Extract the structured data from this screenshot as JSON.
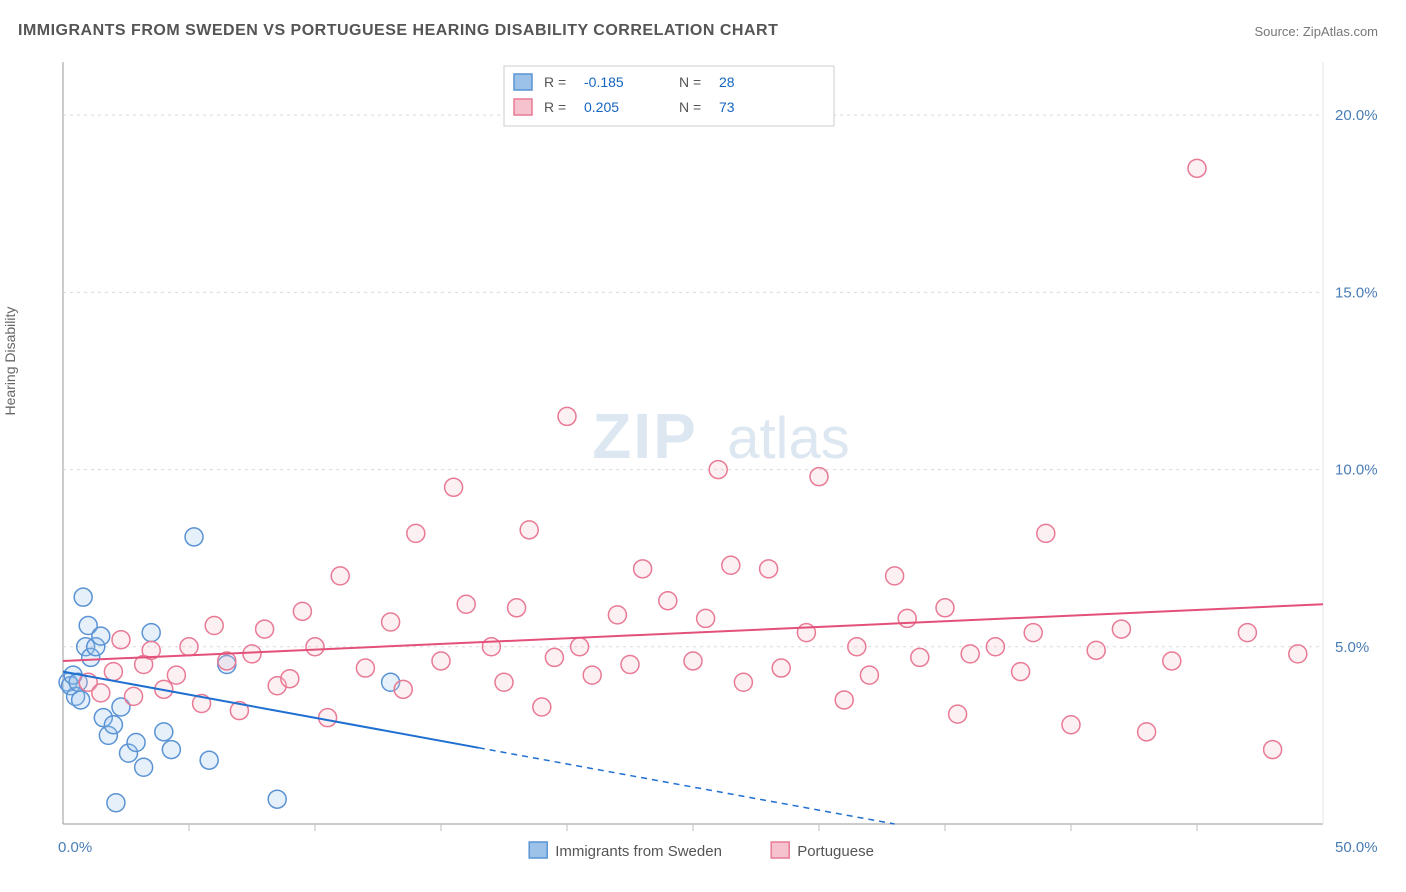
{
  "title": "IMMIGRANTS FROM SWEDEN VS PORTUGUESE HEARING DISABILITY CORRELATION CHART",
  "source": "Source: ZipAtlas.com",
  "ylabel": "Hearing Disability",
  "watermark": {
    "heavy": "ZIP",
    "light": "atlas"
  },
  "chart": {
    "type": "scatter",
    "background_color": "#ffffff",
    "grid_color": "#d9d9d9",
    "axis_color": "#999999",
    "tick_color": "#bfbfbf",
    "xlim": [
      0,
      50
    ],
    "ylim": [
      0,
      21.5
    ],
    "y_ticks": [
      {
        "v": 5,
        "label": "5.0%"
      },
      {
        "v": 10,
        "label": "10.0%"
      },
      {
        "v": 15,
        "label": "15.0%"
      },
      {
        "v": 20,
        "label": "20.0%"
      }
    ],
    "x_axis_labels": {
      "left": "0.0%",
      "right": "50.0%"
    },
    "x_minor_step": 5,
    "marker_radius": 9,
    "marker_stroke_width": 1.5,
    "marker_fill_opacity": 0.25,
    "trend_line_width": 2,
    "legend_top": {
      "rows": [
        {
          "swatch_fill": "#9cc2ea",
          "swatch_stroke": "#5a93d4",
          "r_label": "R =",
          "r_value": "-0.185",
          "n_label": "N =",
          "n_value": "28"
        },
        {
          "swatch_fill": "#f6c2cd",
          "swatch_stroke": "#e87a95",
          "r_label": "R =",
          "r_value": "0.205",
          "n_label": "N =",
          "n_value": "73"
        }
      ]
    },
    "legend_bottom": [
      {
        "swatch_fill": "#9cc2ea",
        "swatch_stroke": "#5a93d4",
        "label": "Immigrants from Sweden"
      },
      {
        "swatch_fill": "#f6c2cd",
        "swatch_stroke": "#e87a95",
        "label": "Portuguese"
      }
    ],
    "series": [
      {
        "name": "Immigrants from Sweden",
        "color_fill": "#9cc2ea",
        "color_stroke": "#5a93d4",
        "trend_color": "#1f6fd1",
        "trend": {
          "x0": 0,
          "y0": 4.3,
          "x_solid_end": 16.5,
          "x1": 33,
          "y1": 0
        },
        "points": [
          [
            0.2,
            4.0
          ],
          [
            0.3,
            3.9
          ],
          [
            0.4,
            4.2
          ],
          [
            0.5,
            3.6
          ],
          [
            0.6,
            4.0
          ],
          [
            0.7,
            3.5
          ],
          [
            0.8,
            6.4
          ],
          [
            0.9,
            5.0
          ],
          [
            1.0,
            5.6
          ],
          [
            1.1,
            4.7
          ],
          [
            1.3,
            5.0
          ],
          [
            1.5,
            5.3
          ],
          [
            1.6,
            3.0
          ],
          [
            1.8,
            2.5
          ],
          [
            2.0,
            2.8
          ],
          [
            2.1,
            0.6
          ],
          [
            2.3,
            3.3
          ],
          [
            2.6,
            2.0
          ],
          [
            2.9,
            2.3
          ],
          [
            3.2,
            1.6
          ],
          [
            3.5,
            5.4
          ],
          [
            4.0,
            2.6
          ],
          [
            4.3,
            2.1
          ],
          [
            5.2,
            8.1
          ],
          [
            5.8,
            1.8
          ],
          [
            6.5,
            4.5
          ],
          [
            8.5,
            0.7
          ],
          [
            13.0,
            4.0
          ]
        ]
      },
      {
        "name": "Portuguese",
        "color_fill": "#f6c2cd",
        "color_stroke": "#e87a95",
        "trend_color": "#e3507a",
        "trend": {
          "x0": 0,
          "y0": 4.6,
          "x1": 50,
          "y1": 6.2
        },
        "points": [
          [
            1.0,
            4.0
          ],
          [
            1.5,
            3.7
          ],
          [
            2.0,
            4.3
          ],
          [
            2.3,
            5.2
          ],
          [
            2.8,
            3.6
          ],
          [
            3.2,
            4.5
          ],
          [
            3.5,
            4.9
          ],
          [
            4.0,
            3.8
          ],
          [
            4.5,
            4.2
          ],
          [
            5.0,
            5.0
          ],
          [
            5.5,
            3.4
          ],
          [
            6.0,
            5.6
          ],
          [
            6.5,
            4.6
          ],
          [
            7.0,
            3.2
          ],
          [
            7.5,
            4.8
          ],
          [
            8.0,
            5.5
          ],
          [
            8.5,
            3.9
          ],
          [
            9.0,
            4.1
          ],
          [
            9.5,
            6.0
          ],
          [
            10.0,
            5.0
          ],
          [
            10.5,
            3.0
          ],
          [
            11.0,
            7.0
          ],
          [
            12.0,
            4.4
          ],
          [
            13.0,
            5.7
          ],
          [
            13.5,
            3.8
          ],
          [
            14.0,
            8.2
          ],
          [
            15.0,
            4.6
          ],
          [
            15.5,
            9.5
          ],
          [
            16.0,
            6.2
          ],
          [
            17.0,
            5.0
          ],
          [
            17.5,
            4.0
          ],
          [
            18.0,
            6.1
          ],
          [
            18.5,
            8.3
          ],
          [
            19.0,
            3.3
          ],
          [
            19.5,
            4.7
          ],
          [
            20.0,
            11.5
          ],
          [
            20.5,
            5.0
          ],
          [
            21.0,
            4.2
          ],
          [
            22.0,
            5.9
          ],
          [
            22.5,
            4.5
          ],
          [
            23.0,
            7.2
          ],
          [
            24.0,
            6.3
          ],
          [
            25.0,
            4.6
          ],
          [
            25.5,
            5.8
          ],
          [
            26.0,
            10.0
          ],
          [
            26.5,
            7.3
          ],
          [
            27.0,
            4.0
          ],
          [
            28.0,
            7.2
          ],
          [
            28.5,
            4.4
          ],
          [
            29.5,
            5.4
          ],
          [
            30.0,
            9.8
          ],
          [
            31.0,
            3.5
          ],
          [
            31.5,
            5.0
          ],
          [
            32.0,
            4.2
          ],
          [
            33.0,
            7.0
          ],
          [
            33.5,
            5.8
          ],
          [
            34.0,
            4.7
          ],
          [
            35.0,
            6.1
          ],
          [
            35.5,
            3.1
          ],
          [
            36.0,
            4.8
          ],
          [
            37.0,
            5.0
          ],
          [
            38.0,
            4.3
          ],
          [
            38.5,
            5.4
          ],
          [
            39.0,
            8.2
          ],
          [
            40.0,
            2.8
          ],
          [
            41.0,
            4.9
          ],
          [
            42.0,
            5.5
          ],
          [
            43.0,
            2.6
          ],
          [
            44.0,
            4.6
          ],
          [
            45.0,
            18.5
          ],
          [
            47.0,
            5.4
          ],
          [
            48.0,
            2.1
          ],
          [
            49.0,
            4.8
          ]
        ]
      }
    ]
  }
}
